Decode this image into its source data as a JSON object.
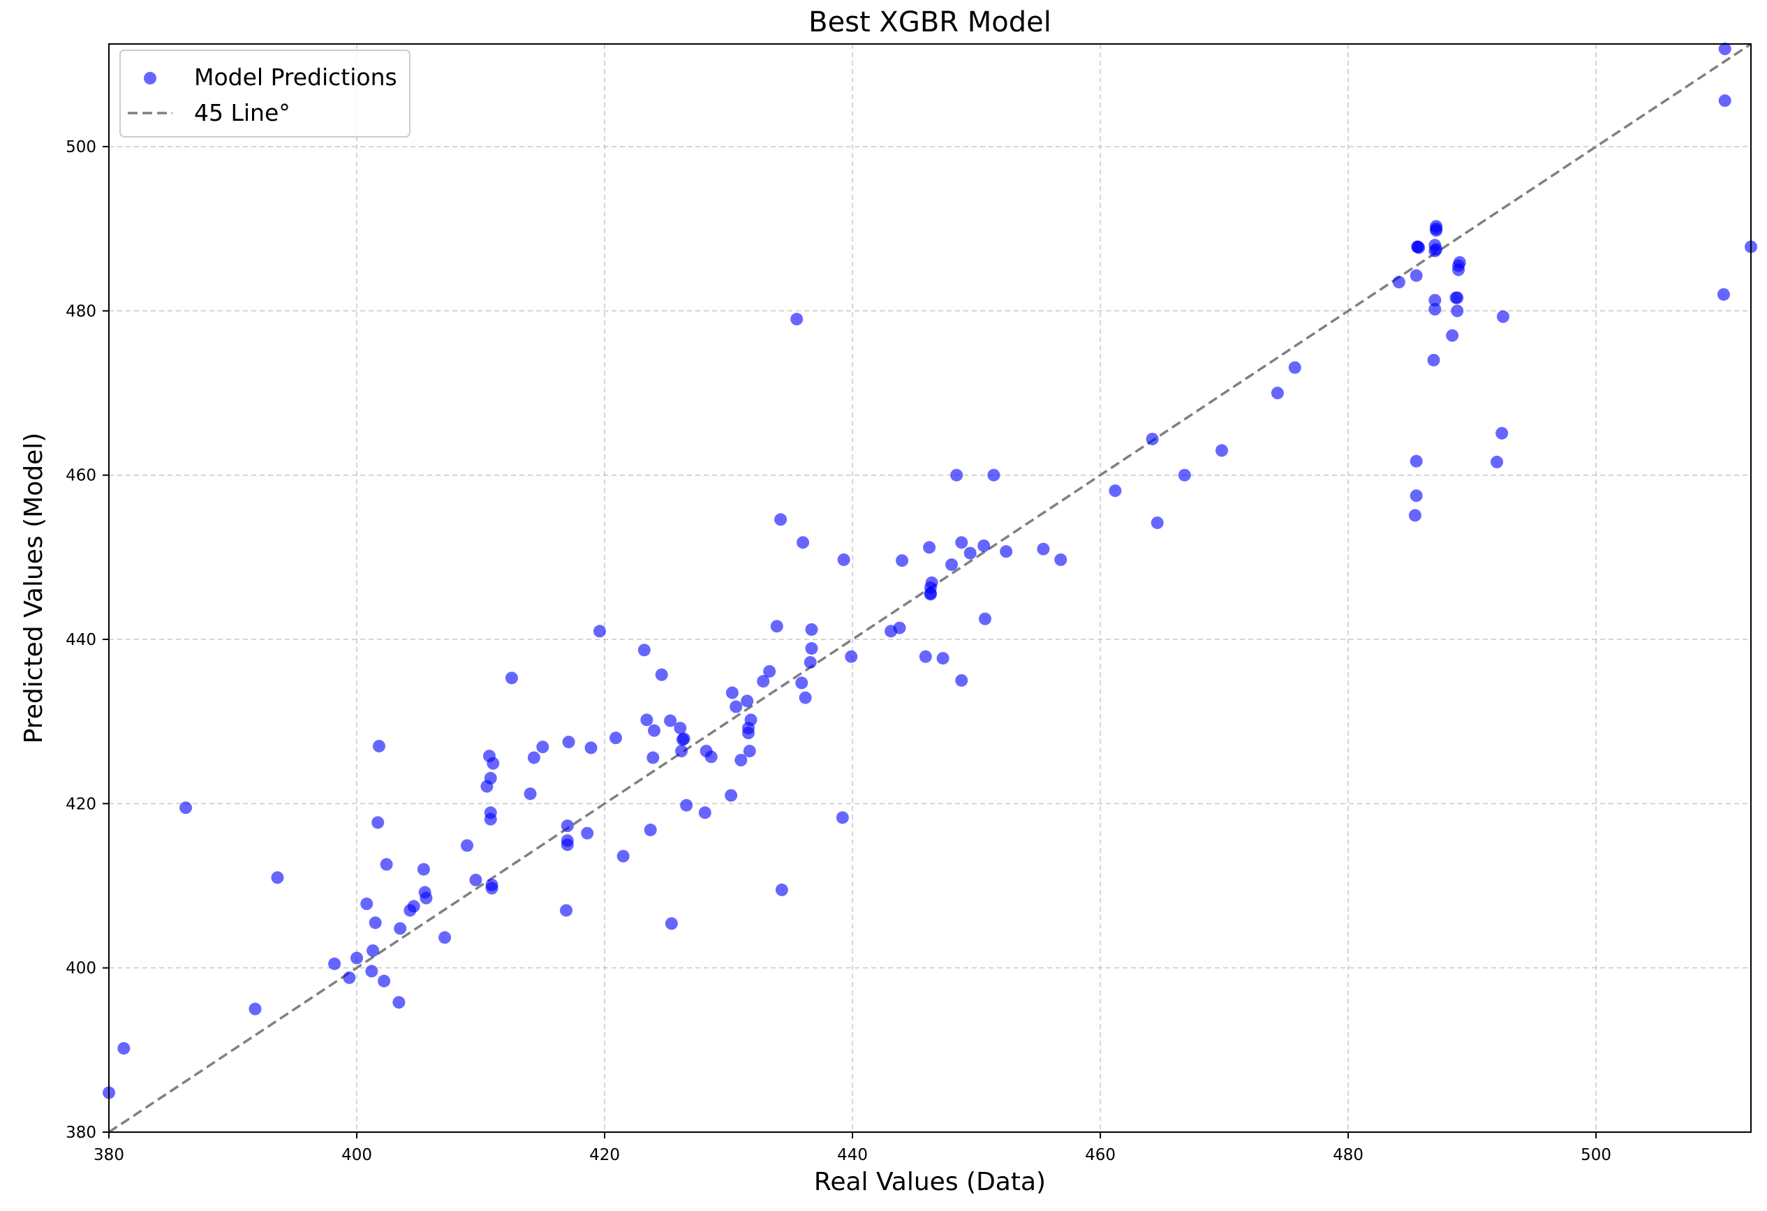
{
  "chart_data": {
    "type": "scatter",
    "title": "Best XGBR Model",
    "xlabel": "Real Values (Data)",
    "ylabel": "Predicted Values (Model)",
    "xlim": [
      380,
      512.5
    ],
    "ylim": [
      380,
      512.5
    ],
    "xticks": [
      380,
      400,
      420,
      440,
      460,
      480,
      500
    ],
    "yticks": [
      380,
      400,
      420,
      440,
      460,
      480,
      500
    ],
    "grid": true,
    "legend": "top-left",
    "series": [
      {
        "name": "Model Predictions",
        "kind": "scatter",
        "color": "#0000ff",
        "x": [
          380.0,
          381.2,
          386.2,
          391.8,
          393.6,
          398.2,
          399.4,
          400.0,
          400.8,
          401.2,
          401.3,
          401.5,
          401.7,
          401.8,
          402.2,
          402.4,
          403.4,
          403.5,
          404.3,
          404.6,
          405.4,
          405.5,
          405.6,
          407.1,
          408.9,
          409.6,
          410.5,
          410.7,
          410.8,
          410.8,
          410.8,
          410.9,
          410.9,
          411.0,
          412.5,
          414.0,
          414.3,
          415.0,
          416.9,
          417.0,
          417.0,
          417.0,
          417.1,
          418.6,
          418.9,
          419.6,
          420.9,
          421.5,
          423.2,
          423.4,
          423.7,
          423.9,
          424.0,
          424.6,
          425.3,
          425.4,
          426.1,
          426.2,
          426.3,
          426.4,
          426.6,
          428.1,
          428.2,
          428.6,
          430.2,
          430.3,
          430.6,
          431.0,
          431.5,
          431.6,
          431.6,
          431.7,
          431.8,
          432.8,
          433.3,
          433.9,
          434.2,
          434.3,
          435.5,
          435.9,
          436.0,
          436.2,
          436.6,
          436.7,
          436.7,
          439.2,
          439.3,
          439.9,
          443.1,
          443.8,
          444.0,
          445.9,
          446.2,
          446.3,
          446.3,
          446.3,
          446.4,
          447.3,
          448.0,
          448.4,
          448.8,
          448.8,
          449.5,
          450.6,
          450.7,
          451.4,
          452.4,
          455.4,
          456.8,
          461.2,
          464.2,
          464.6,
          466.8,
          469.8,
          474.3,
          475.7,
          484.1,
          485.4,
          485.5,
          485.5,
          485.5,
          485.6,
          485.6,
          485.7,
          486.9,
          487.0,
          487.0,
          487.0,
          487.0,
          487.1,
          487.1,
          487.1,
          487.1,
          488.4,
          488.7,
          488.8,
          488.8,
          488.9,
          488.9,
          489.0,
          492.0,
          492.4,
          492.5,
          510.3,
          510.4,
          510.4,
          512.5
        ],
        "y": [
          384.8,
          390.2,
          419.5,
          395.0,
          411.0,
          400.5,
          398.8,
          401.2,
          407.8,
          399.6,
          402.1,
          405.5,
          417.7,
          427.0,
          398.4,
          412.6,
          395.8,
          404.8,
          407.0,
          407.5,
          412.0,
          409.2,
          408.5,
          403.7,
          414.9,
          410.7,
          422.1,
          425.8,
          423.1,
          418.9,
          418.1,
          409.7,
          410.1,
          424.9,
          435.3,
          421.2,
          425.6,
          426.9,
          407.0,
          415.0,
          415.5,
          417.3,
          427.5,
          416.4,
          426.8,
          441.0,
          428.0,
          413.6,
          438.7,
          430.2,
          416.8,
          425.6,
          428.9,
          435.7,
          430.1,
          405.4,
          429.2,
          426.4,
          427.8,
          427.9,
          419.8,
          418.9,
          426.4,
          425.7,
          421.0,
          433.5,
          431.8,
          425.3,
          432.5,
          428.6,
          429.2,
          426.4,
          430.2,
          434.9,
          436.1,
          441.6,
          454.6,
          409.5,
          479.0,
          434.7,
          451.8,
          432.9,
          437.2,
          441.2,
          438.9,
          418.3,
          449.7,
          437.9,
          441.0,
          441.4,
          449.6,
          437.9,
          451.2,
          445.5,
          445.6,
          446.3,
          446.9,
          437.7,
          449.1,
          460.0,
          451.8,
          435.0,
          450.5,
          451.4,
          442.5,
          460.0,
          450.7,
          451.0,
          449.7,
          458.1,
          464.4,
          454.2,
          460.0,
          463.0,
          470.0,
          473.1,
          483.5,
          455.1,
          457.5,
          461.7,
          484.3,
          487.8,
          487.8,
          487.7,
          474.0,
          480.2,
          481.3,
          487.3,
          488.0,
          487.5,
          489.8,
          490.3,
          490.0,
          477.0,
          481.6,
          480.0,
          481.6,
          485.0,
          485.5,
          485.9,
          461.6,
          465.1,
          479.3,
          482.0,
          505.6,
          511.9,
          487.8
        ]
      },
      {
        "name": "45 Line°",
        "kind": "line",
        "color": "#808080",
        "x": [
          380,
          512.5
        ],
        "y": [
          380,
          512.5
        ]
      }
    ]
  }
}
